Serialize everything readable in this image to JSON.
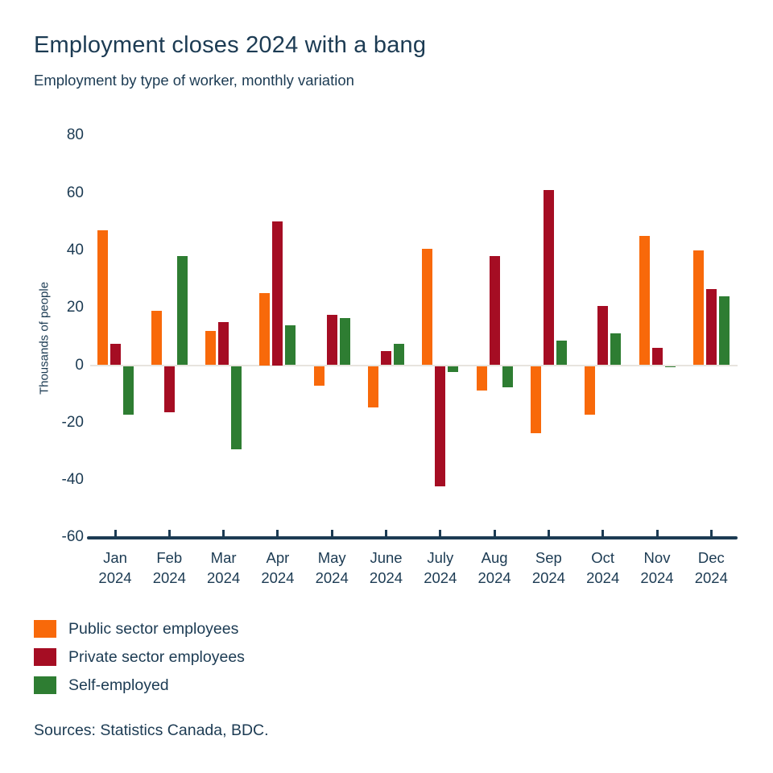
{
  "chart_data": {
    "type": "bar",
    "title": "Employment closes 2024 with a bang",
    "subtitle": "Employment by type of worker, monthly variation",
    "ylabel": "Thousands of people",
    "ylim": [
      -60,
      80
    ],
    "yticks": [
      80,
      60,
      40,
      20,
      0,
      -20,
      -40,
      -60
    ],
    "grid": false,
    "legend_position": "bottom-left",
    "categories": [
      "Jan",
      "Feb",
      "Mar",
      "Apr",
      "May",
      "June",
      "July",
      "Aug",
      "Sep",
      "Oct",
      "Nov",
      "Dec"
    ],
    "category_year": "2024",
    "series": [
      {
        "name": "Public sector employees",
        "color": "#F8690A",
        "values": [
          47,
          19,
          12,
          25,
          -7,
          -14.5,
          40.5,
          -8.5,
          -23.5,
          -17,
          45,
          40
        ]
      },
      {
        "name": "Private sector employees",
        "color": "#A50D23",
        "values": [
          7.5,
          -16,
          15,
          50,
          17.5,
          5,
          -42,
          38,
          61,
          20.5,
          6,
          26.5
        ]
      },
      {
        "name": "Self-employed",
        "color": "#2E7D32",
        "values": [
          -17,
          38,
          -29,
          14,
          16.5,
          7.5,
          -2,
          -7.5,
          8.5,
          11,
          -0.5,
          24
        ]
      }
    ],
    "source": "Sources: Statistics Canada, BDC.",
    "colors": {
      "text_navy": "#1C3B53",
      "axis_navy": "#1C3B53",
      "zero_line_gray": "#E7E4DE",
      "background": "#ffffff"
    }
  }
}
